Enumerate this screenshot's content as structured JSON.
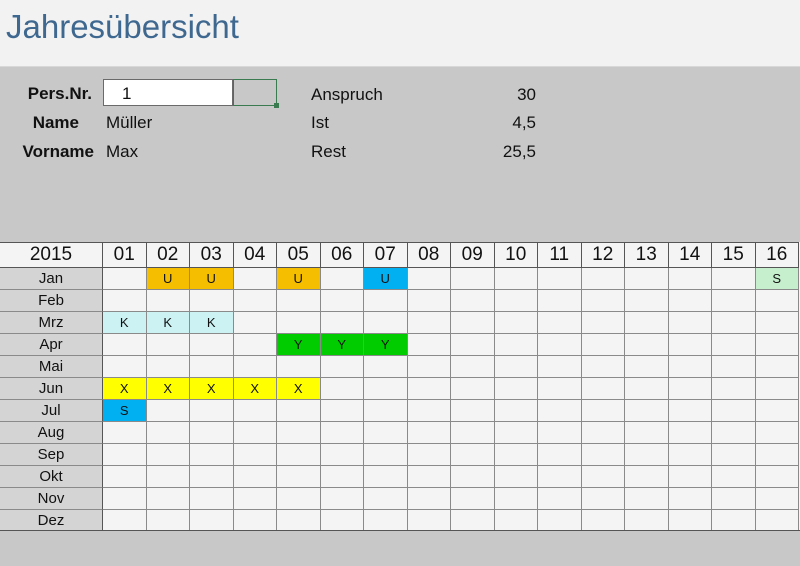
{
  "title": "Jahresübersicht",
  "employee": {
    "pers_label": "Pers.Nr.",
    "pers_value": "1",
    "name_label": "Name",
    "name_value": "Müller",
    "vorname_label": "Vorname",
    "vorname_value": "Max"
  },
  "leave": {
    "anspruch_label": "Anspruch",
    "anspruch_value": "30",
    "ist_label": "Ist",
    "ist_value": "4,5",
    "rest_label": "Rest",
    "rest_value": "25,5"
  },
  "calendar": {
    "year": "2015",
    "days": [
      "01",
      "02",
      "03",
      "04",
      "05",
      "06",
      "07",
      "08",
      "09",
      "10",
      "11",
      "12",
      "13",
      "14",
      "15",
      "16"
    ],
    "months": [
      "Jan",
      "Feb",
      "Mrz",
      "Apr",
      "Mai",
      "Jun",
      "Jul",
      "Aug",
      "Sep",
      "Okt",
      "Nov",
      "Dez"
    ],
    "entries": [
      {
        "month": 0,
        "day": 1,
        "code": "U",
        "color": "#f5bf00"
      },
      {
        "month": 0,
        "day": 2,
        "code": "U",
        "color": "#f5bf00"
      },
      {
        "month": 0,
        "day": 4,
        "code": "U",
        "color": "#f5bf00"
      },
      {
        "month": 0,
        "day": 6,
        "code": "U",
        "color": "#00b0f0"
      },
      {
        "month": 0,
        "day": 15,
        "code": "S",
        "color": "#c6efce"
      },
      {
        "month": 2,
        "day": 0,
        "code": "K",
        "color": "#ccf2f4"
      },
      {
        "month": 2,
        "day": 1,
        "code": "K",
        "color": "#ccf2f4"
      },
      {
        "month": 2,
        "day": 2,
        "code": "K",
        "color": "#ccf2f4"
      },
      {
        "month": 3,
        "day": 4,
        "code": "Y",
        "color": "#00cc00"
      },
      {
        "month": 3,
        "day": 5,
        "code": "Y",
        "color": "#00cc00"
      },
      {
        "month": 3,
        "day": 6,
        "code": "Y",
        "color": "#00cc00"
      },
      {
        "month": 5,
        "day": 0,
        "code": "X",
        "color": "#ffff00"
      },
      {
        "month": 5,
        "day": 1,
        "code": "X",
        "color": "#ffff00"
      },
      {
        "month": 5,
        "day": 2,
        "code": "X",
        "color": "#ffff00"
      },
      {
        "month": 5,
        "day": 3,
        "code": "X",
        "color": "#ffff00"
      },
      {
        "month": 5,
        "day": 4,
        "code": "X",
        "color": "#ffff00"
      },
      {
        "month": 6,
        "day": 0,
        "code": "S",
        "color": "#00b0f0"
      }
    ]
  }
}
